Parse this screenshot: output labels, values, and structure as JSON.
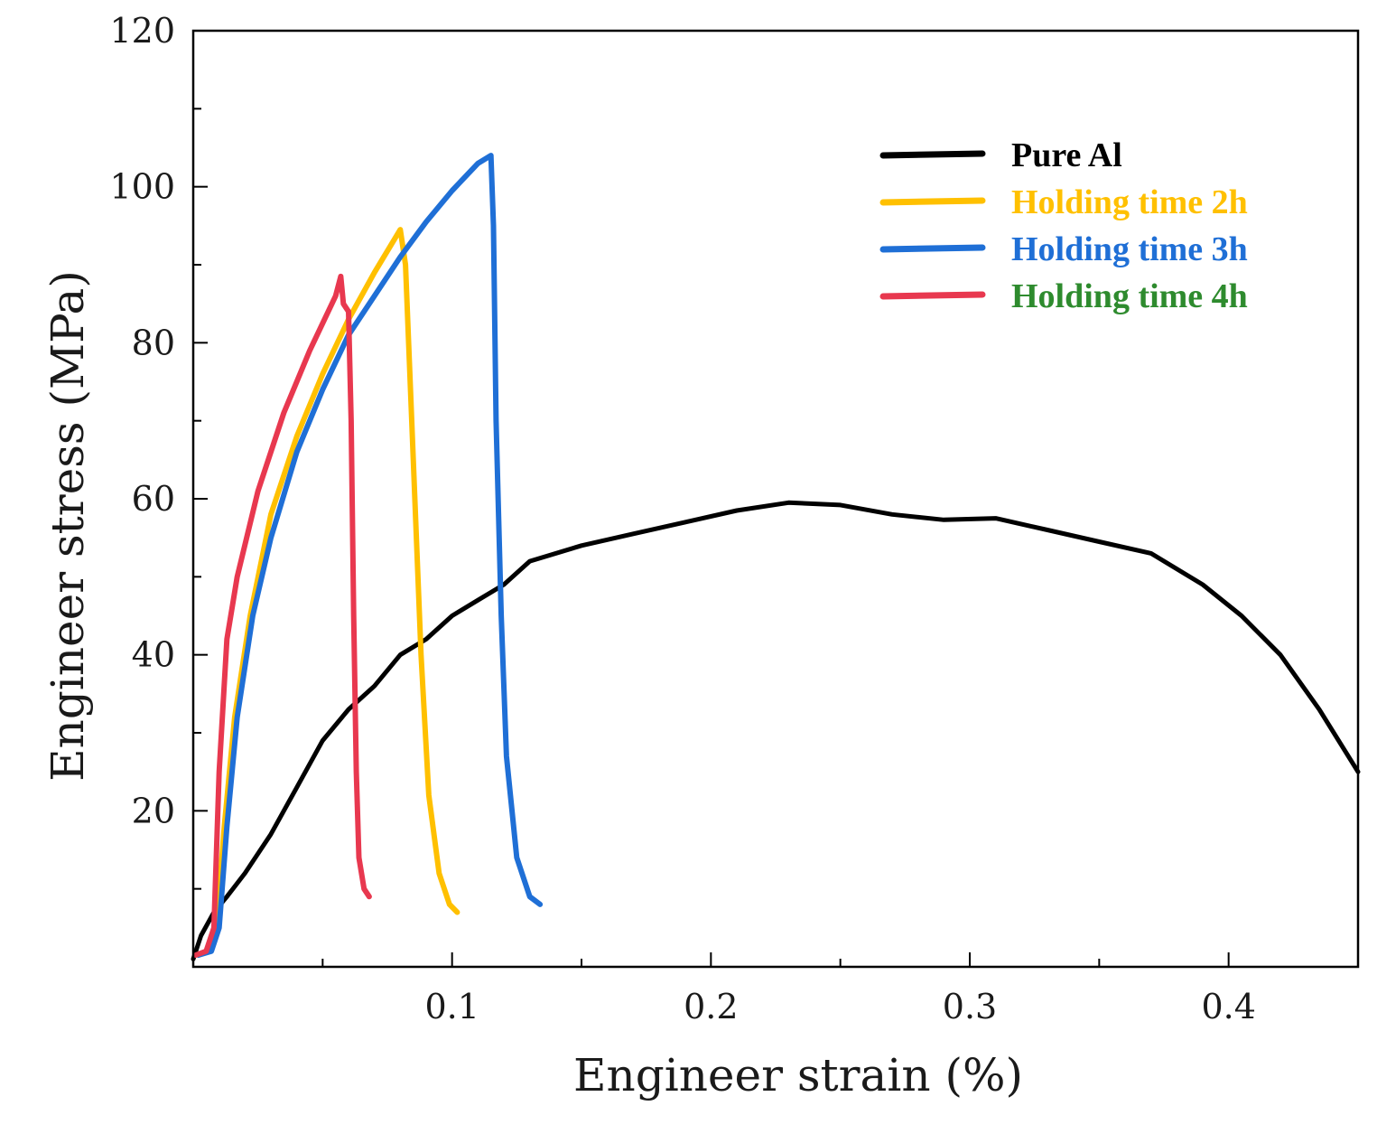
{
  "chart_data": {
    "type": "line",
    "title": "",
    "xlabel": "Engineer strain (%)",
    "ylabel": "Engineer stress (MPa)",
    "xlim": [
      0,
      0.45
    ],
    "ylim": [
      0,
      120
    ],
    "xticks": [
      0.1,
      0.2,
      0.3,
      0.4
    ],
    "xtick_labels": [
      "0.1",
      "0.2",
      "0.3",
      "0.4"
    ],
    "yticks": [
      20,
      40,
      60,
      80,
      100,
      120
    ],
    "ytick_labels": [
      "20",
      "40",
      "60",
      "80",
      "100",
      "120"
    ],
    "grid": false,
    "legend_position": "top-right",
    "series": [
      {
        "name": "Pure Al",
        "line_color": "#000000",
        "text_color": "#000000",
        "points": [
          [
            0,
            1
          ],
          [
            0.003,
            4
          ],
          [
            0.008,
            7
          ],
          [
            0.013,
            9
          ],
          [
            0.02,
            12
          ],
          [
            0.03,
            17
          ],
          [
            0.04,
            23
          ],
          [
            0.05,
            29
          ],
          [
            0.06,
            33
          ],
          [
            0.07,
            36
          ],
          [
            0.08,
            40
          ],
          [
            0.09,
            42
          ],
          [
            0.1,
            45
          ],
          [
            0.11,
            47
          ],
          [
            0.12,
            49
          ],
          [
            0.13,
            52
          ],
          [
            0.15,
            54
          ],
          [
            0.17,
            55.5
          ],
          [
            0.19,
            57
          ],
          [
            0.21,
            58.5
          ],
          [
            0.23,
            59.5
          ],
          [
            0.25,
            59.2
          ],
          [
            0.27,
            58
          ],
          [
            0.29,
            57.3
          ],
          [
            0.31,
            57.5
          ],
          [
            0.33,
            56
          ],
          [
            0.35,
            54.5
          ],
          [
            0.37,
            53
          ],
          [
            0.39,
            49
          ],
          [
            0.405,
            45
          ],
          [
            0.42,
            40
          ],
          [
            0.435,
            33
          ],
          [
            0.45,
            25
          ]
        ]
      },
      {
        "name": "Holding time 2h",
        "line_color": "#FFC000",
        "text_color": "#FFC000",
        "points": [
          [
            0.002,
            1.5
          ],
          [
            0.006,
            2
          ],
          [
            0.009,
            5
          ],
          [
            0.012,
            18
          ],
          [
            0.016,
            32
          ],
          [
            0.022,
            45
          ],
          [
            0.03,
            58
          ],
          [
            0.04,
            68
          ],
          [
            0.05,
            76
          ],
          [
            0.06,
            83
          ],
          [
            0.07,
            89
          ],
          [
            0.08,
            94.5
          ],
          [
            0.082,
            90
          ],
          [
            0.085,
            65
          ],
          [
            0.088,
            40
          ],
          [
            0.091,
            22
          ],
          [
            0.095,
            12
          ],
          [
            0.099,
            8
          ],
          [
            0.102,
            7
          ]
        ]
      },
      {
        "name": "Holding time 3h",
        "line_color": "#1F6FD6",
        "text_color": "#1F6FD6",
        "points": [
          [
            0.002,
            1.5
          ],
          [
            0.007,
            2
          ],
          [
            0.01,
            5
          ],
          [
            0.013,
            18
          ],
          [
            0.017,
            32
          ],
          [
            0.023,
            45
          ],
          [
            0.03,
            55
          ],
          [
            0.04,
            66
          ],
          [
            0.05,
            74
          ],
          [
            0.06,
            81
          ],
          [
            0.07,
            86
          ],
          [
            0.08,
            91
          ],
          [
            0.09,
            95.5
          ],
          [
            0.1,
            99.5
          ],
          [
            0.11,
            103
          ],
          [
            0.115,
            104
          ],
          [
            0.116,
            95
          ],
          [
            0.117,
            70
          ],
          [
            0.119,
            45
          ],
          [
            0.121,
            27
          ],
          [
            0.125,
            14
          ],
          [
            0.13,
            9
          ],
          [
            0.134,
            8
          ]
        ]
      },
      {
        "name": "Holding time 4h",
        "line_color": "#E8384F",
        "text_color": "#2E8B2E",
        "points": [
          [
            0.001,
            1.5
          ],
          [
            0.005,
            2
          ],
          [
            0.008,
            5
          ],
          [
            0.01,
            25
          ],
          [
            0.013,
            42
          ],
          [
            0.017,
            50
          ],
          [
            0.025,
            61
          ],
          [
            0.035,
            71
          ],
          [
            0.045,
            79
          ],
          [
            0.055,
            86
          ],
          [
            0.057,
            88.5
          ],
          [
            0.058,
            85
          ],
          [
            0.06,
            84
          ],
          [
            0.061,
            70
          ],
          [
            0.062,
            45
          ],
          [
            0.063,
            25
          ],
          [
            0.064,
            14
          ],
          [
            0.066,
            10
          ],
          [
            0.068,
            9
          ]
        ]
      }
    ]
  }
}
